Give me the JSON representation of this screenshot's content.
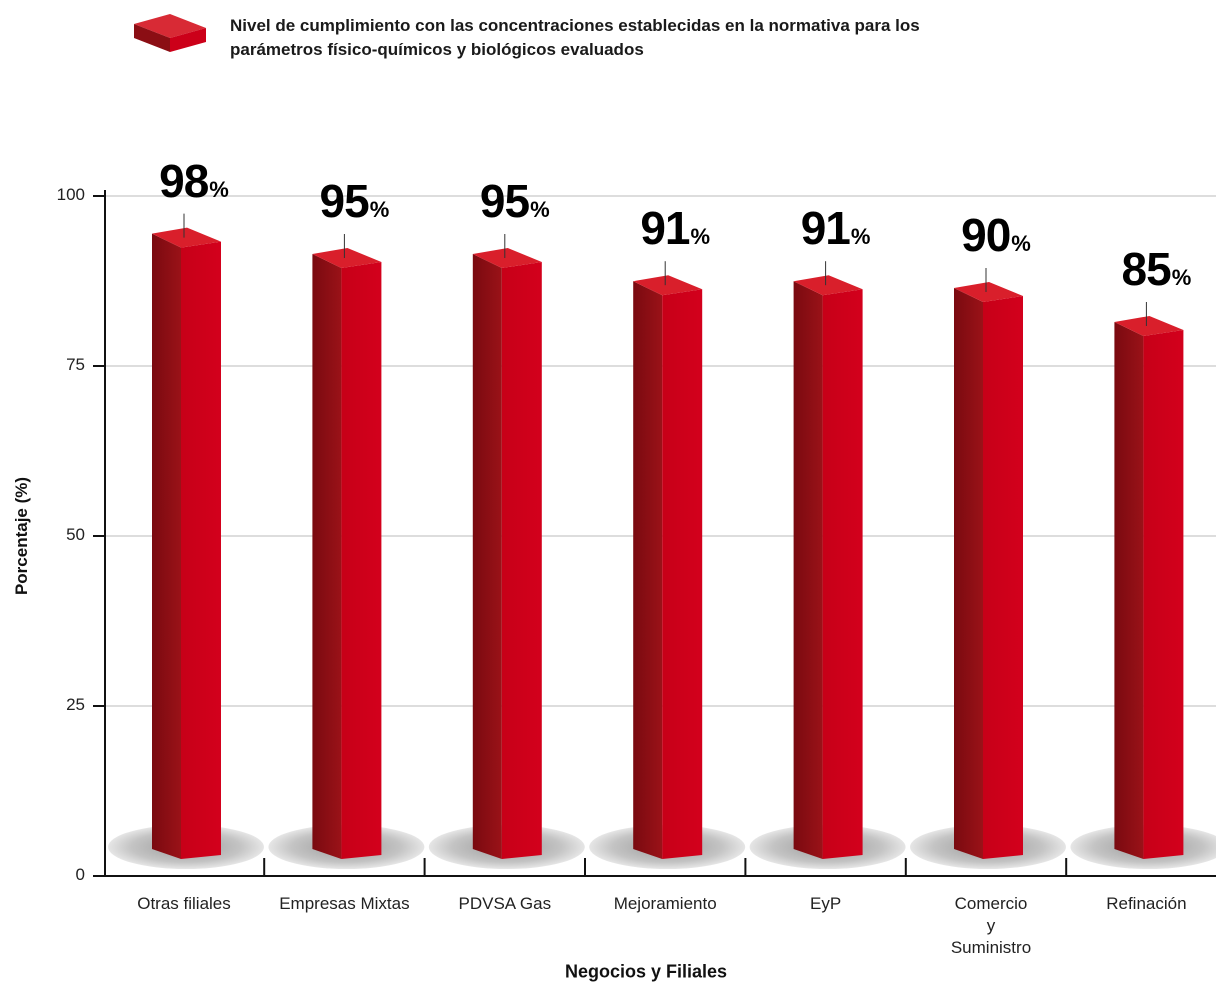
{
  "chart_data": {
    "type": "bar",
    "title": "",
    "legend": {
      "entries": [
        "Nivel de cumplimiento con las concentraciones establecidas en la normativa para los parámetros físico-químicos y biológicos evaluados"
      ],
      "placement": "top-left"
    },
    "xlabel": "Negocios y Filiales",
    "ylabel": "Porcentaje (%)",
    "ylim": [
      0,
      100
    ],
    "yticks": [
      "0",
      "25",
      "50",
      "75",
      "100"
    ],
    "grid": true,
    "categories": [
      [
        "Otras filiales"
      ],
      [
        "Empresas Mixtas"
      ],
      [
        "PDVSA Gas"
      ],
      [
        "Mejoramiento"
      ],
      [
        "EyP"
      ],
      [
        "Comercio",
        "y",
        "Suministro"
      ],
      [
        "Refinación"
      ]
    ],
    "series": [
      {
        "values": [
          98,
          95,
          95,
          91,
          91,
          90,
          85
        ]
      }
    ],
    "value_suffix": "%",
    "colors": {
      "bar_front": "#cc0019",
      "bar_side": "#8b0e14",
      "bar_top": "#d91f2b",
      "shadow": "#bfbfbf",
      "grid": "#dddddd",
      "axis": "#111111"
    }
  }
}
